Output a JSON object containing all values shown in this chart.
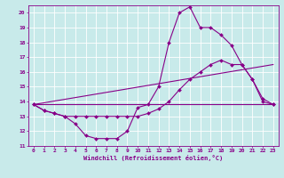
{
  "background_color": "#c8eaea",
  "grid_color": "#aacccc",
  "line_color": "#880088",
  "xlim": [
    -0.5,
    23.5
  ],
  "ylim": [
    11,
    20.5
  ],
  "xlabel": "Windchill (Refroidissement éolien,°C)",
  "xticks": [
    0,
    1,
    2,
    3,
    4,
    5,
    6,
    7,
    8,
    9,
    10,
    11,
    12,
    13,
    14,
    15,
    16,
    17,
    18,
    19,
    20,
    21,
    22,
    23
  ],
  "yticks": [
    11,
    12,
    13,
    14,
    15,
    16,
    17,
    18,
    19,
    20
  ],
  "curve1_x": [
    0,
    1,
    2,
    3,
    4,
    5,
    6,
    7,
    8,
    9,
    10,
    11,
    12,
    13,
    14,
    15,
    16,
    17,
    18,
    19,
    20,
    21,
    22,
    23
  ],
  "curve1_y": [
    13.8,
    13.4,
    13.2,
    13.0,
    12.5,
    11.7,
    11.5,
    11.5,
    11.5,
    12.0,
    13.6,
    13.8,
    15.0,
    18.0,
    20.0,
    20.4,
    19.0,
    19.0,
    18.5,
    17.8,
    16.5,
    15.5,
    14.2,
    13.8
  ],
  "curve2_x": [
    0,
    1,
    2,
    3,
    4,
    5,
    6,
    7,
    8,
    9,
    10,
    11,
    12,
    13,
    14,
    15,
    16,
    17,
    18,
    19,
    20,
    21,
    22,
    23
  ],
  "curve2_y": [
    13.8,
    13.4,
    13.2,
    13.0,
    13.0,
    13.0,
    13.0,
    13.0,
    13.0,
    13.0,
    13.0,
    13.2,
    13.5,
    14.0,
    14.8,
    15.5,
    16.0,
    16.5,
    16.8,
    16.5,
    16.5,
    15.5,
    14.0,
    13.8
  ],
  "curve3_x": [
    0,
    23
  ],
  "curve3_y": [
    13.8,
    13.8
  ],
  "curve4_x": [
    0,
    23
  ],
  "curve4_y": [
    13.8,
    16.5
  ],
  "axis_fontsize": 5,
  "tick_fontsize": 4.5
}
